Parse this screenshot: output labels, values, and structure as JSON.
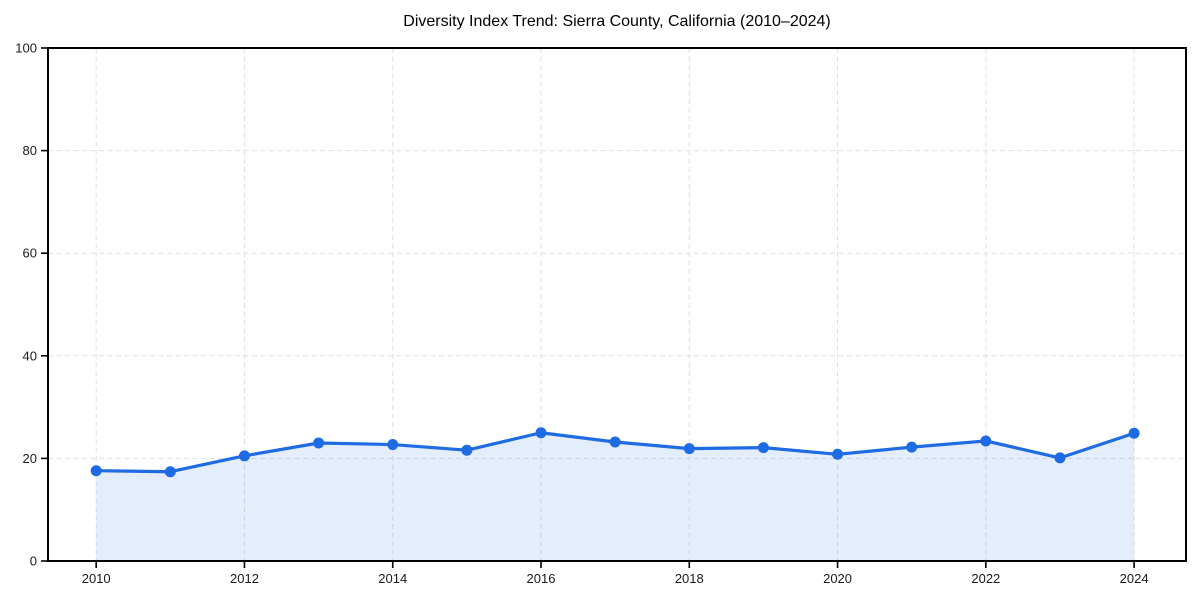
{
  "chart_data": {
    "type": "line",
    "title": "Diversity Index Trend: Sierra County, California (2010–2024)",
    "x": [
      2010,
      2011,
      2012,
      2013,
      2014,
      2015,
      2016,
      2017,
      2018,
      2019,
      2020,
      2021,
      2022,
      2023,
      2024
    ],
    "series": [
      {
        "name": "Diversity Index",
        "values": [
          17.6,
          17.4,
          20.5,
          23.0,
          22.7,
          21.6,
          25.0,
          23.2,
          21.9,
          22.1,
          20.8,
          22.2,
          23.4,
          20.1,
          24.9
        ]
      }
    ],
    "xlabel": "",
    "ylabel": "",
    "xticks": [
      2010,
      2012,
      2014,
      2016,
      2018,
      2020,
      2022,
      2024
    ],
    "yticks": [
      0,
      20,
      40,
      60,
      80,
      100
    ],
    "ylim": [
      0,
      100
    ],
    "xlim": [
      2009.35,
      2024.7
    ],
    "grid": true,
    "grid_style": "dashed",
    "legend": "none",
    "area_fill": true,
    "marker": "circle",
    "colors": {
      "line": "#1e6be4",
      "area_fill": "rgba(30, 107, 228, 0.12)",
      "grid": "#e0e0e0",
      "spine": "#000000",
      "tick_label": "#1a1a1a",
      "title": "#000000",
      "background": "#ffffff"
    }
  }
}
